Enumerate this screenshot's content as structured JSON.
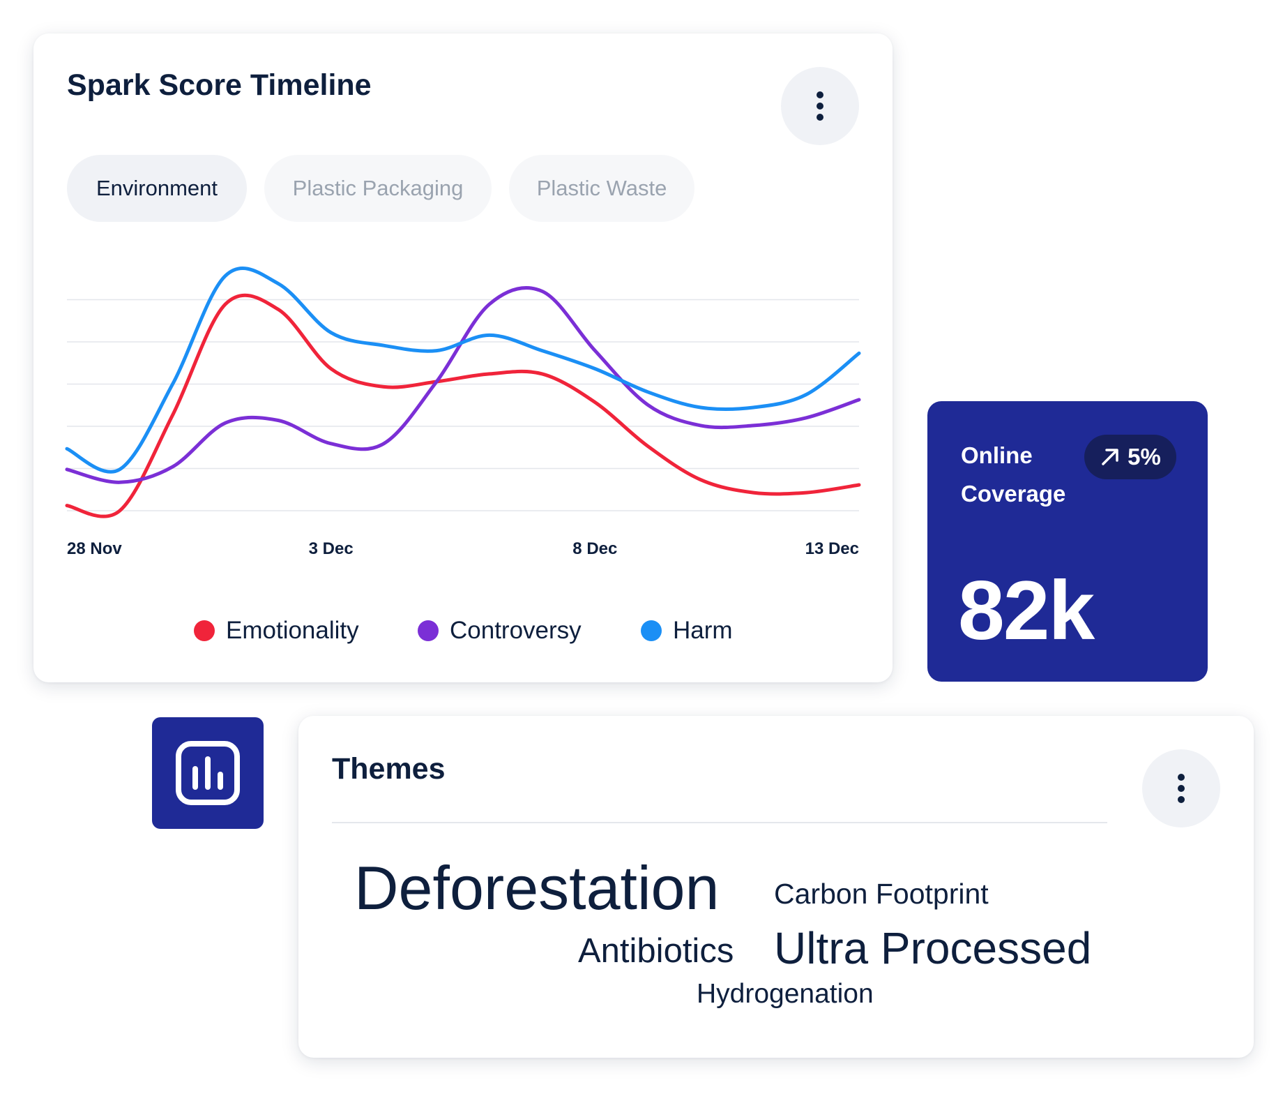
{
  "timeline": {
    "title": "Spark Score Timeline",
    "menu_icon": "kebab-vertical-icon",
    "tabs": [
      {
        "label": "Environment",
        "active": true
      },
      {
        "label": "Plastic Packaging",
        "active": false
      },
      {
        "label": "Plastic Waste",
        "active": false
      }
    ]
  },
  "chart_data": {
    "type": "line",
    "x": [
      "28 Nov",
      "29 Nov",
      "30 Nov",
      "1 Dec",
      "2 Dec",
      "3 Dec",
      "4 Dec",
      "5 Dec",
      "6 Dec",
      "7 Dec",
      "8 Dec",
      "9 Dec",
      "10 Dec",
      "11 Dec",
      "12 Dec",
      "13 Dec"
    ],
    "x_tick_labels": [
      "28 Nov",
      "3 Dec",
      "8 Dec",
      "13 Dec"
    ],
    "ylim": [
      0,
      100
    ],
    "grid": true,
    "y_ticks_shown": false,
    "legend_position": "bottom-center",
    "series": [
      {
        "name": "Emotionality",
        "color": "#f0243a",
        "values": [
          2,
          0,
          37,
          80,
          78,
          55,
          48,
          50,
          53,
          53,
          42,
          25,
          12,
          7,
          7,
          10
        ]
      },
      {
        "name": "Controversy",
        "color": "#7b2fd6",
        "values": [
          16,
          11,
          17,
          34,
          35,
          26,
          26,
          50,
          80,
          85,
          62,
          41,
          33,
          33,
          36,
          43
        ]
      },
      {
        "name": "Harm",
        "color": "#1b8ff5",
        "values": [
          24,
          16,
          49,
          91,
          88,
          69,
          64,
          62,
          68,
          62,
          55,
          46,
          40,
          40,
          45,
          61
        ]
      }
    ]
  },
  "coverage": {
    "label": "Online Coverage",
    "change": "5%",
    "change_icon": "arrow-up-right-icon",
    "value": "82k",
    "color": "#1f2a96"
  },
  "chart_button": {
    "icon": "bar-chart-icon"
  },
  "themes": {
    "title": "Themes",
    "menu_icon": "kebab-vertical-icon",
    "items": [
      "Deforestation",
      "Carbon Footprint",
      "Antibiotics",
      "Ultra Processed",
      "Hydrogenation"
    ]
  }
}
